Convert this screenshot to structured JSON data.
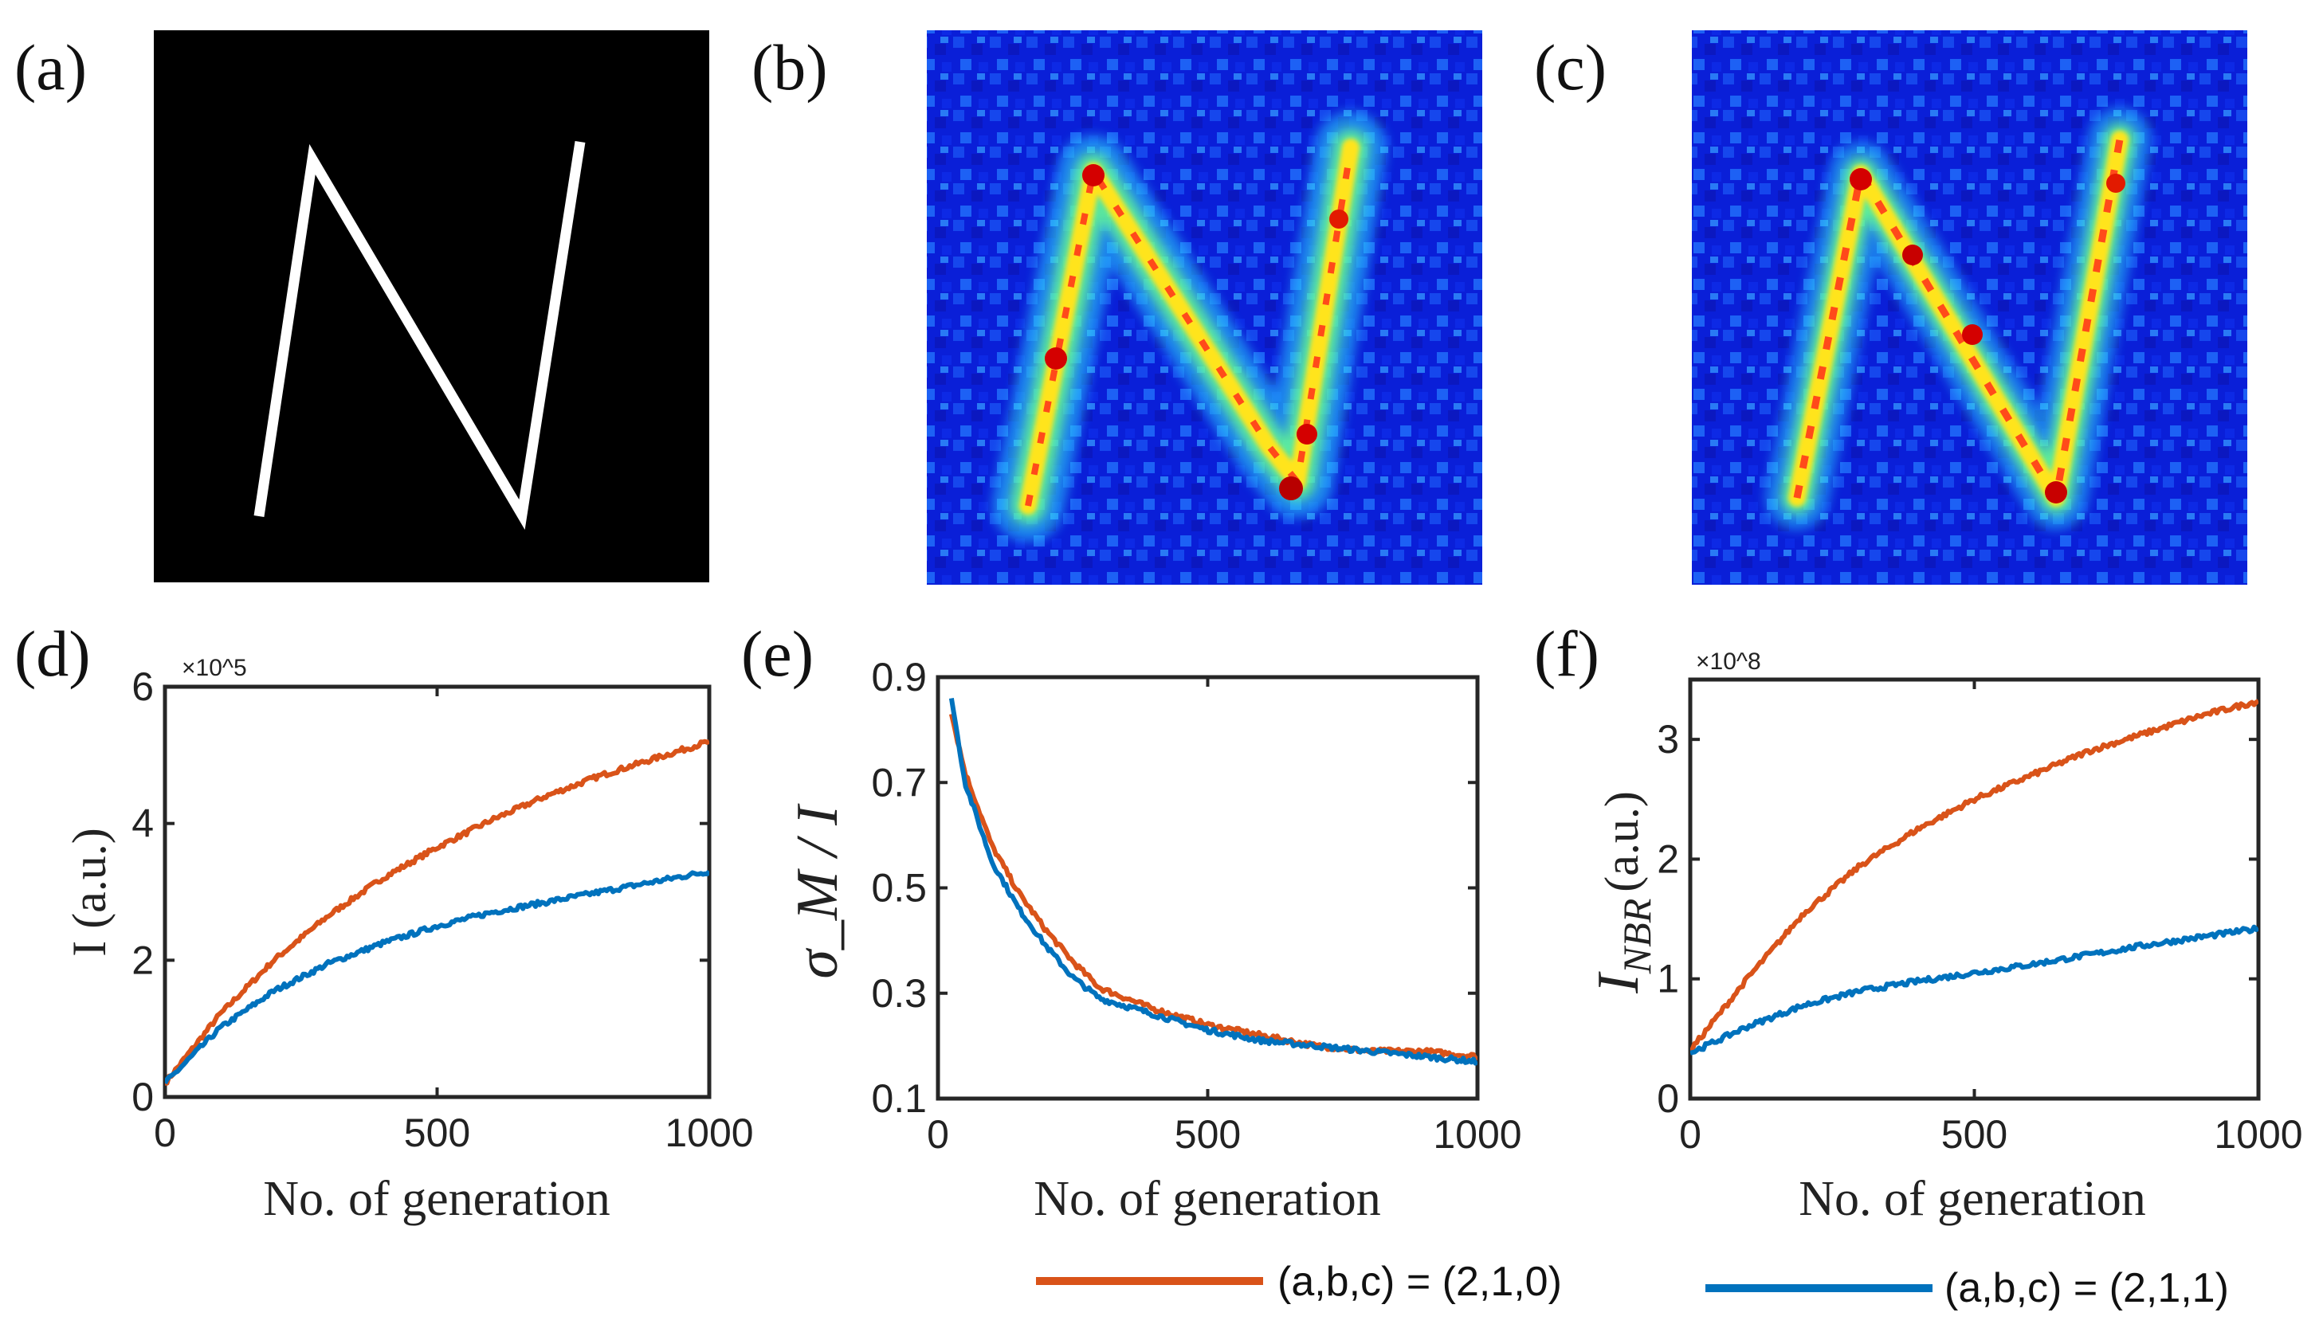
{
  "panels": {
    "a": "(a)",
    "b": "(b)",
    "c": "(c)",
    "d": "(d)",
    "e": "(e)",
    "f": "(f)"
  },
  "legend": {
    "series1": "(a,b,c) = (2,1,0)",
    "series2": "(a,b,c) = (2,1,1)"
  },
  "colors": {
    "orange": "#D95319",
    "blue": "#0072BD"
  },
  "chart_data": [
    {
      "panel": "d",
      "type": "line",
      "xlabel": "No. of generation",
      "ylabel": "I (a.u.)",
      "y_exponent": "×10^5",
      "xlim": [
        0,
        1000
      ],
      "ylim": [
        0,
        6
      ],
      "xticks": [
        0,
        500,
        1000
      ],
      "yticks": [
        0,
        2,
        4,
        6
      ],
      "x": [
        0,
        100,
        200,
        300,
        400,
        500,
        600,
        700,
        800,
        900,
        1000
      ],
      "series": [
        {
          "name": "(a,b,c) = (2,1,0)",
          "color": "#D95319",
          "values": [
            0.2,
            1.2,
            2.0,
            2.65,
            3.2,
            3.65,
            4.05,
            4.4,
            4.7,
            4.95,
            5.2
          ]
        },
        {
          "name": "(a,b,c) = (2,1,1)",
          "color": "#0072BD",
          "values": [
            0.2,
            1.0,
            1.55,
            1.95,
            2.25,
            2.5,
            2.7,
            2.85,
            3.0,
            3.15,
            3.3
          ]
        }
      ]
    },
    {
      "panel": "e",
      "type": "line",
      "xlabel": "No. of generation",
      "ylabel": "σ_M / I",
      "xlim": [
        0,
        1000
      ],
      "ylim": [
        0.1,
        0.9
      ],
      "xticks": [
        0,
        500,
        1000
      ],
      "yticks": [
        0.1,
        0.3,
        0.5,
        0.7,
        0.9
      ],
      "x": [
        25,
        50,
        100,
        150,
        200,
        250,
        300,
        400,
        500,
        600,
        700,
        800,
        900,
        1000
      ],
      "series": [
        {
          "name": "(a,b,c) = (2,1,0)",
          "color": "#D95319",
          "values": [
            0.83,
            0.72,
            0.58,
            0.49,
            0.42,
            0.36,
            0.31,
            0.27,
            0.24,
            0.22,
            0.2,
            0.19,
            0.19,
            0.18
          ]
        },
        {
          "name": "(a,b,c) = (2,1,1)",
          "color": "#0072BD",
          "values": [
            0.86,
            0.7,
            0.55,
            0.46,
            0.39,
            0.33,
            0.29,
            0.26,
            0.23,
            0.21,
            0.2,
            0.19,
            0.18,
            0.17
          ]
        }
      ]
    },
    {
      "panel": "f",
      "type": "line",
      "xlabel": "No. of generation",
      "ylabel": "I_NBR (a.u.)",
      "ylabel_main": "I",
      "ylabel_sub": "NBR",
      "ylabel_unit": "(a.u.)",
      "y_exponent": "×10^8",
      "xlim": [
        0,
        1000
      ],
      "ylim": [
        0,
        3.5
      ],
      "xticks": [
        0,
        500,
        1000
      ],
      "yticks": [
        0,
        1,
        2,
        3
      ],
      "x": [
        0,
        100,
        200,
        300,
        400,
        500,
        600,
        700,
        800,
        900,
        1000
      ],
      "series": [
        {
          "name": "(a,b,c) = (2,1,0)",
          "color": "#D95319",
          "values": [
            0.4,
            1.0,
            1.55,
            1.95,
            2.25,
            2.5,
            2.7,
            2.9,
            3.05,
            3.2,
            3.32
          ]
        },
        {
          "name": "(a,b,c) = (2,1,1)",
          "color": "#0072BD",
          "values": [
            0.38,
            0.6,
            0.78,
            0.9,
            0.98,
            1.05,
            1.12,
            1.2,
            1.28,
            1.35,
            1.42
          ]
        }
      ]
    }
  ]
}
